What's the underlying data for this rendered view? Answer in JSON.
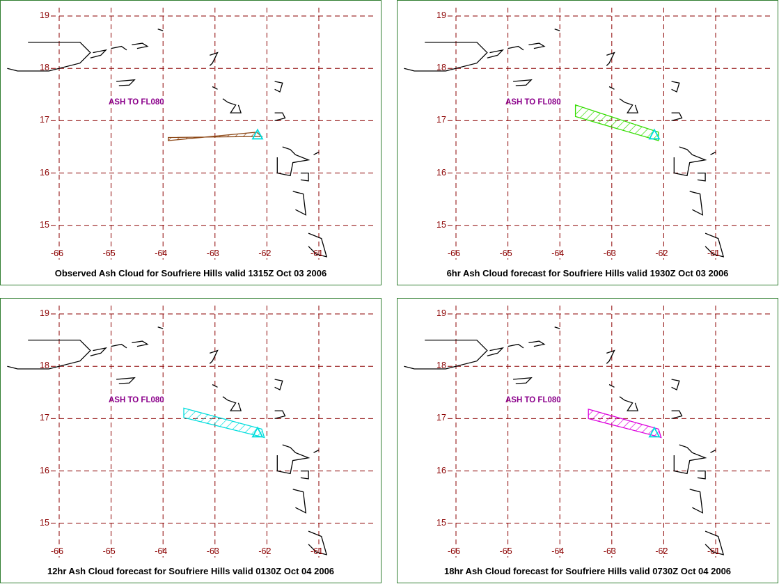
{
  "panels": [
    {
      "caption": "Observed Ash Cloud for Soufriere  Hills valid 1315Z Oct 03 2006",
      "ash_label": "ASH TO FL080",
      "plume_color": "#8b4513",
      "plume": [
        [
          -63.9,
          16.62
        ],
        [
          -62.2,
          16.78
        ],
        [
          -62.1,
          16.7
        ],
        [
          -63.9,
          16.68
        ]
      ]
    },
    {
      "caption": "6hr Ash Cloud forecast for Soufriere  Hills valid 1930Z Oct 03 2006",
      "ash_label": "ASH TO FL080",
      "plume_color": "#33dd00",
      "plume": [
        [
          -63.7,
          17.3
        ],
        [
          -63.7,
          17.08
        ],
        [
          -62.1,
          16.62
        ],
        [
          -62.1,
          16.78
        ]
      ]
    },
    {
      "caption": "12hr Ash Cloud forecast for Soufriere  Hills valid 0130Z Oct 04 2006",
      "ash_label": "ASH TO FL080",
      "plume_color": "#00dddd",
      "plume": [
        [
          -63.6,
          17.2
        ],
        [
          -63.6,
          17.02
        ],
        [
          -62.05,
          16.64
        ],
        [
          -62.1,
          16.8
        ]
      ]
    },
    {
      "caption": "18hr Ash Cloud forecast for Soufriere  Hills valid 0730Z Oct 04 2006",
      "ash_label": "ASH TO FL080",
      "plume_color": "#dd00dd",
      "plume": [
        [
          -63.45,
          17.18
        ],
        [
          -63.45,
          17.0
        ],
        [
          -62.05,
          16.64
        ],
        [
          -62.1,
          16.8
        ]
      ]
    }
  ],
  "lat_ticks": [
    "19",
    "18",
    "17",
    "16",
    "15"
  ],
  "lon_ticks": [
    "-66",
    "-65",
    "-64",
    "-63",
    "-62",
    "-61"
  ],
  "lat_values": [
    19,
    18,
    17,
    16,
    15
  ],
  "lon_values": [
    -66,
    -65,
    -64,
    -63,
    -62,
    -61
  ],
  "volcano": {
    "lon": -62.18,
    "lat": 16.72,
    "marker_color": "#00dddd"
  },
  "colors": {
    "grid": "#8b0000",
    "border": "#2f7d2f",
    "coast": "#000000",
    "ash_label": "#8b008b"
  }
}
